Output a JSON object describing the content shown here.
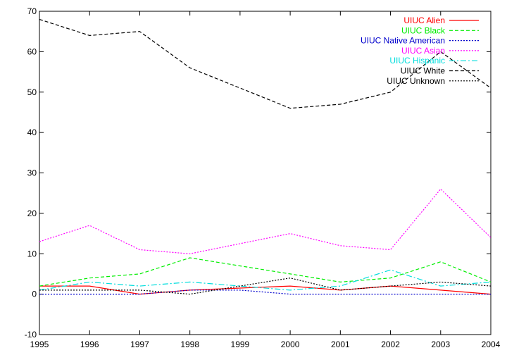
{
  "chart_data": {
    "type": "line",
    "title": "",
    "xlabel": "",
    "ylabel": "",
    "x": [
      1995,
      1996,
      1997,
      1998,
      1999,
      2000,
      2001,
      2002,
      2003,
      2004
    ],
    "xlim": [
      1995,
      2004
    ],
    "ylim": [
      -10,
      70
    ],
    "xticks": [
      "1995",
      "1996",
      "1997",
      "1998",
      "1999",
      "2000",
      "2001",
      "2002",
      "2003",
      "2004"
    ],
    "yticks": [
      "-10",
      "0",
      "10",
      "20",
      "30",
      "40",
      "50",
      "60",
      "70"
    ],
    "grid": false,
    "legend_position": "top-right",
    "series": [
      {
        "name": "UIUC Alien",
        "color": "#ff0000",
        "dash": "solid",
        "values": [
          2,
          2,
          0,
          1,
          1.5,
          2,
          1,
          2,
          1,
          0
        ]
      },
      {
        "name": "UIUC Black",
        "color": "#00ee00",
        "dash": "dashed",
        "values": [
          2,
          4,
          5,
          9,
          7,
          5,
          3,
          4,
          8,
          3
        ]
      },
      {
        "name": "UIUC Native American",
        "color": "#0000cc",
        "dash": "dotted",
        "values": [
          0,
          0,
          0,
          1,
          1,
          0,
          0,
          0,
          0,
          0
        ]
      },
      {
        "name": "UIUC Asian",
        "color": "#ff00ff",
        "dash": "dotted",
        "values": [
          13,
          17,
          11,
          10,
          12.5,
          15,
          12,
          11,
          26,
          14
        ]
      },
      {
        "name": "UIUC Hispanic",
        "color": "#00dddd",
        "dash": "dashdot",
        "values": [
          1,
          3,
          2,
          3,
          2,
          1,
          2,
          6,
          2,
          3
        ]
      },
      {
        "name": "UIUC White",
        "color": "#000000",
        "dash": "dashed",
        "values": [
          68,
          64,
          65,
          56,
          51,
          46,
          47,
          50,
          60,
          51
        ]
      },
      {
        "name": "UIUC Unknown",
        "color": "#000000",
        "dash": "dotted",
        "values": [
          1,
          1,
          1,
          0,
          2,
          4,
          1,
          2,
          3,
          2
        ]
      }
    ]
  }
}
